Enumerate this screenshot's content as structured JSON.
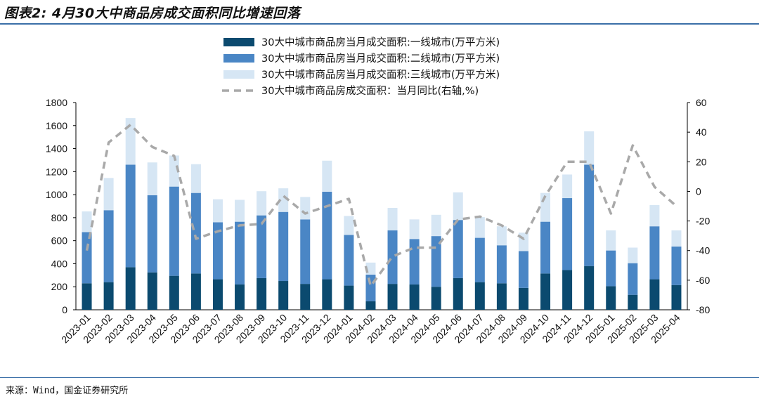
{
  "header": {
    "title": "图表2: 4月30大中商品房成交面积同比增速回落"
  },
  "footer": {
    "source": "来源：Wind，国金证券研究所"
  },
  "colors": {
    "tier1": "#0b4a6f",
    "tier2": "#4a86c5",
    "tier3": "#d6e6f4",
    "yoy": "#a9a9a9"
  },
  "chart_data": {
    "type": "bar",
    "stacked": true,
    "categories": [
      "2023-01",
      "2023-02",
      "2023-03",
      "2023-04",
      "2023-05",
      "2023-06",
      "2023-07",
      "2023-08",
      "2023-09",
      "2023-10",
      "2023-11",
      "2023-12",
      "2024-01",
      "2024-02",
      "2024-03",
      "2024-04",
      "2024-05",
      "2024-06",
      "2024-07",
      "2024-08",
      "2024-09",
      "2024-10",
      "2024-11",
      "2024-12",
      "2025-01",
      "2025-02",
      "2025-03",
      "2025-04"
    ],
    "series": [
      {
        "name": "30大中城市商品房当月成交面积:一线城市(万平方米)",
        "type": "bar",
        "axis": "left",
        "values": [
          230,
          240,
          370,
          325,
          295,
          315,
          265,
          220,
          275,
          250,
          225,
          265,
          210,
          75,
          225,
          220,
          200,
          275,
          240,
          230,
          190,
          315,
          345,
          380,
          205,
          130,
          265,
          215
        ]
      },
      {
        "name": "30大中城市商品房当月成交面积:二线城市(万平方米)",
        "type": "bar",
        "axis": "left",
        "values": [
          445,
          625,
          890,
          670,
          775,
          700,
          495,
          545,
          545,
          600,
          560,
          760,
          440,
          230,
          465,
          395,
          440,
          505,
          385,
          330,
          320,
          450,
          625,
          880,
          310,
          275,
          460,
          335
        ]
      },
      {
        "name": "30大中城市商品房当月成交面积:三线城市(万平方米)",
        "type": "bar",
        "axis": "left",
        "values": [
          180,
          280,
          405,
          285,
          270,
          250,
          200,
          190,
          210,
          205,
          195,
          270,
          165,
          105,
          195,
          170,
          185,
          240,
          180,
          165,
          160,
          250,
          205,
          290,
          175,
          135,
          185,
          140
        ]
      },
      {
        "name": "30大中城市商品房成交面积：当月同比(右轴,%)",
        "type": "line",
        "axis": "right",
        "style": "dashed",
        "values": [
          -40,
          33,
          45,
          30,
          24,
          -32,
          -27,
          -23,
          -22,
          -3,
          -15,
          -10,
          -5,
          -64,
          -44,
          -38,
          -38,
          -19,
          -17,
          -23,
          -32,
          -3,
          20,
          20,
          -15,
          31,
          3,
          -10
        ]
      }
    ],
    "ylim_left": [
      0,
      1800
    ],
    "yticks_left": [
      0,
      200,
      400,
      600,
      800,
      1000,
      1200,
      1400,
      1600,
      1800
    ],
    "ylim_right": [
      -80,
      60
    ],
    "yticks_right": [
      -80,
      -60,
      -40,
      -20,
      0,
      20,
      40,
      60
    ],
    "legend_position": "top",
    "grid": false
  }
}
